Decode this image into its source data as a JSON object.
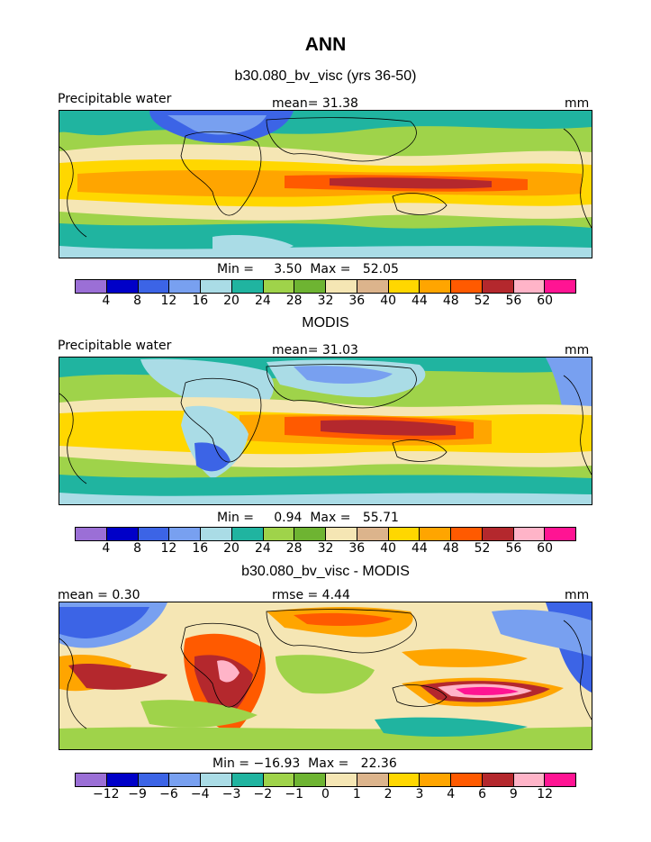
{
  "title": "ANN",
  "colors": {
    "abs_scale": [
      "#9b6fd6",
      "#0000c8",
      "#3c64e6",
      "#78a0f0",
      "#aadce6",
      "#20b4a0",
      "#9fd34a",
      "#6eb432",
      "#f5e6b4",
      "#dcb48c",
      "#ffd700",
      "#ffa500",
      "#ff5a00",
      "#b4282d",
      "#ffb4c8",
      "#ff1493"
    ],
    "diff_scale": [
      "#9b6fd6",
      "#0000c8",
      "#3c64e6",
      "#78a0f0",
      "#aadce6",
      "#20b4a0",
      "#9fd34a",
      "#6eb432",
      "#f5e6b4",
      "#dcb48c",
      "#ffd700",
      "#ffa500",
      "#ff5a00",
      "#b4282d",
      "#ffb4c8",
      "#ff1493"
    ]
  },
  "panels": [
    {
      "subtitle": "b30.080_bv_visc (yrs 36-50)",
      "left_label": "Precipitable water",
      "center_label": "mean=   31.38",
      "units": "mm",
      "minmax": "Min =     3.50  Max =   52.05",
      "ticks": [
        "4",
        "8",
        "12",
        "16",
        "20",
        "24",
        "28",
        "32",
        "36",
        "40",
        "44",
        "48",
        "52",
        "56",
        "60"
      ]
    },
    {
      "subtitle": "MODIS",
      "left_label": "Precipitable water",
      "center_label": "mean=   31.03",
      "units": "mm",
      "minmax": "Min =     0.94  Max =   55.71",
      "ticks": [
        "4",
        "8",
        "12",
        "16",
        "20",
        "24",
        "28",
        "32",
        "36",
        "40",
        "44",
        "48",
        "52",
        "56",
        "60"
      ]
    },
    {
      "subtitle": "b30.080_bv_visc - MODIS",
      "left_label": "mean =     0.30",
      "center_label": "rmse =     4.44",
      "units": "mm",
      "minmax": "Min = −16.93  Max =   22.36",
      "ticks": [
        "−12",
        "−9",
        "−6",
        "−4",
        "−3",
        "−2",
        "−1",
        "0",
        "1",
        "2",
        "3",
        "4",
        "6",
        "9",
        "12"
      ]
    }
  ]
}
